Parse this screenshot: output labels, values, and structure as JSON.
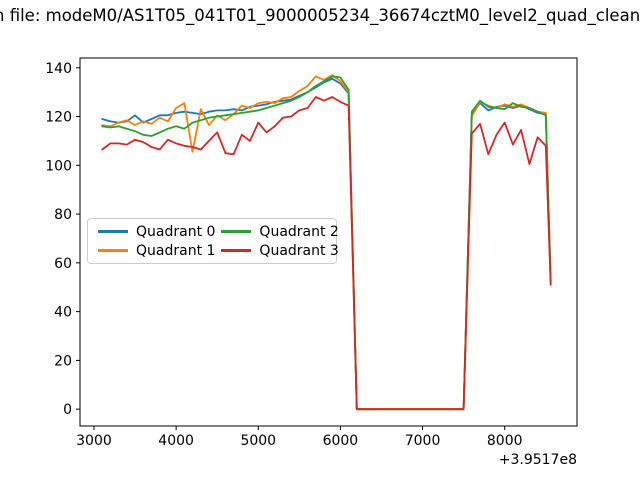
{
  "window": {
    "background_color": "#ffffff"
  },
  "chart_data": {
    "type": "line",
    "title": "n file: modeM0/AS1T05_041T01_9000005234_36674cztM0_level2_quad_clean",
    "xlabel": "",
    "ylabel": "",
    "x_axis_offset_label": "+3.9517e8",
    "xlim": [
      2830,
      8880
    ],
    "ylim": [
      -6.9,
      144
    ],
    "x_ticks": [
      3000,
      4000,
      5000,
      6000,
      7000,
      8000
    ],
    "y_ticks": [
      0,
      20,
      40,
      60,
      80,
      100,
      120,
      140
    ],
    "grid": false,
    "legend_position": "center-left",
    "x": [
      3100,
      3200,
      3300,
      3400,
      3500,
      3600,
      3700,
      3800,
      3900,
      4000,
      4100,
      4200,
      4300,
      4400,
      4500,
      4600,
      4700,
      4800,
      4900,
      5000,
      5100,
      5200,
      5300,
      5400,
      5500,
      5600,
      5700,
      5800,
      5900,
      6000,
      6100,
      6200,
      6300,
      6400,
      6500,
      6600,
      6700,
      6800,
      6900,
      7000,
      7100,
      7200,
      7300,
      7400,
      7500,
      7600,
      7700,
      7800,
      7900,
      8000,
      8100,
      8200,
      8300,
      8400,
      8500,
      8560
    ],
    "series": [
      {
        "name": "Quadrant 0",
        "color": "#1f77b4",
        "values": [
          119,
          118,
          117.5,
          118,
          120.5,
          117.5,
          119,
          120.5,
          120.5,
          121.5,
          122,
          121.5,
          121,
          122,
          122.5,
          122.5,
          123,
          122.5,
          124,
          124.5,
          125,
          126,
          126.5,
          127,
          128.5,
          130,
          132,
          134,
          135.5,
          133.5,
          129.5,
          0,
          0,
          0,
          0,
          0,
          0,
          0,
          0,
          0,
          0,
          0,
          0,
          0,
          0,
          121,
          125.5,
          122.5,
          124,
          124.5,
          123.5,
          124.5,
          123,
          121.5,
          121,
          52.5
        ]
      },
      {
        "name": "Quadrant 1",
        "color": "#ff7f0e",
        "values": [
          116.5,
          116,
          117.5,
          118.5,
          116.5,
          118,
          117,
          119.5,
          118,
          123.5,
          125.5,
          105.5,
          123,
          116.5,
          120.5,
          118.5,
          121,
          124.5,
          123.5,
          125.5,
          126,
          125.5,
          127.5,
          128,
          130.5,
          132.5,
          136.5,
          135,
          137,
          134.5,
          130,
          0,
          0,
          0,
          0,
          0,
          0,
          0,
          0,
          0,
          0,
          0,
          0,
          0,
          0,
          120,
          126,
          124.5,
          123.5,
          125,
          124,
          125,
          123.5,
          122,
          121.5,
          52
        ]
      },
      {
        "name": "Quadrant 2",
        "color": "#2ca02c",
        "values": [
          116,
          115.5,
          116,
          115,
          114,
          112.5,
          112,
          113.5,
          115,
          116,
          115,
          117.5,
          118.5,
          119.5,
          120,
          120.5,
          121,
          121.5,
          122,
          122.5,
          123.5,
          124.5,
          125.5,
          126.5,
          128,
          130,
          132.5,
          134.5,
          136.5,
          136,
          131,
          0,
          0,
          0,
          0,
          0,
          0,
          0,
          0,
          0,
          0,
          0,
          0,
          0,
          0,
          122,
          126.5,
          124,
          123.5,
          123,
          125.5,
          124,
          123.5,
          122,
          120.5,
          51.5
        ]
      },
      {
        "name": "Quadrant 3",
        "color": "#d62728",
        "values": [
          106.5,
          109,
          109,
          108.5,
          110.5,
          109.5,
          107.5,
          106.5,
          110.5,
          109,
          108,
          107.5,
          106.5,
          110,
          113.5,
          105,
          104.5,
          112.5,
          110,
          117.5,
          113.5,
          116,
          119.5,
          120,
          122.5,
          123.5,
          128,
          126.5,
          128,
          126,
          124.5,
          0,
          0,
          0,
          0,
          0,
          0,
          0,
          0,
          0,
          0,
          0,
          0,
          0,
          0,
          113,
          117,
          104.5,
          112.5,
          117.5,
          108.5,
          114.5,
          100.5,
          111.5,
          108,
          51
        ]
      }
    ]
  }
}
